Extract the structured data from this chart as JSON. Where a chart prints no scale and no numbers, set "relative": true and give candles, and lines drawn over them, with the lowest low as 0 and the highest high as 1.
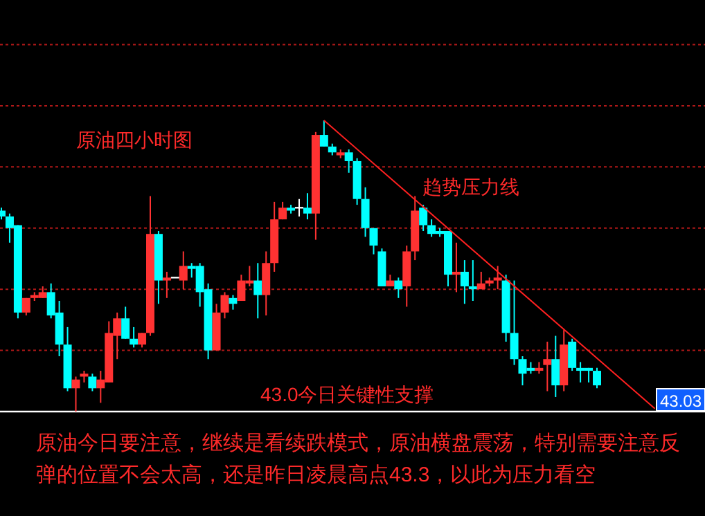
{
  "chart_data": {
    "type": "candlestick",
    "relative": true,
    "title": "原油四小时图",
    "ref_lines": [
      {
        "axis": "y",
        "value": 0.21,
        "color": "#b01818",
        "line_style": "dotted"
      },
      {
        "axis": "y",
        "value": 0.42,
        "color": "#b01818",
        "line_style": "dotted"
      },
      {
        "axis": "y",
        "value": 0.63,
        "color": "#b01818",
        "line_style": "dotted"
      },
      {
        "axis": "y",
        "value": 0.84,
        "color": "#b01818",
        "line_style": "dotted"
      },
      {
        "axis": "y",
        "value": 1.05,
        "color": "#b01818",
        "line_style": "dotted"
      },
      {
        "axis": "y",
        "value": 1.26,
        "color": "#b01818",
        "line_style": "dotted"
      }
    ],
    "annotations": [
      "趋势压力线",
      "43.0今日关键性支撑",
      "43.03",
      "原油今日要注意，继续是看续跌模式，原油横盘震荡，特别需要注意反弹的位置不会太高，还是昨日凌晨高点43.3，以此为压力看空"
    ],
    "categories": [
      null,
      null,
      null,
      null,
      null,
      null,
      null,
      null,
      null,
      null,
      null,
      null,
      null,
      null,
      null,
      null,
      null,
      null,
      null,
      null,
      null,
      null,
      null,
      null,
      null,
      null,
      null,
      null,
      null,
      null,
      null,
      null,
      null,
      null,
      null,
      null,
      null,
      null,
      null,
      null,
      null,
      null,
      null,
      null,
      null,
      null,
      null,
      null,
      null,
      null,
      null,
      null,
      null,
      null,
      null,
      null,
      null,
      null,
      null,
      null,
      null,
      null,
      null,
      null,
      null,
      null,
      null,
      null,
      null,
      null,
      null,
      null,
      null,
      null,
      null,
      null,
      null,
      null,
      null,
      null
    ],
    "ohlc": [
      [
        0.69,
        0.7,
        0.66,
        0.67
      ],
      [
        0.67,
        0.68,
        0.58,
        0.63
      ],
      [
        0.64,
        0.64,
        0.32,
        0.34
      ],
      [
        0.34,
        0.39,
        0.33,
        0.39
      ],
      [
        0.39,
        0.41,
        0.38,
        0.4
      ],
      [
        0.39,
        0.43,
        0.39,
        0.41
      ],
      [
        0.41,
        0.44,
        0.32,
        0.33
      ],
      [
        0.34,
        0.38,
        0.19,
        0.23
      ],
      [
        0.23,
        0.29,
        0.07,
        0.08
      ],
      [
        0.08,
        0.12,
        0.0,
        0.11
      ],
      [
        0.12,
        0.14,
        0.1,
        0.13
      ],
      [
        0.12,
        0.13,
        0.07,
        0.08
      ],
      [
        0.08,
        0.14,
        0.03,
        0.11
      ],
      [
        0.1,
        0.31,
        0.1,
        0.27
      ],
      [
        0.26,
        0.34,
        0.18,
        0.32
      ],
      [
        0.32,
        0.36,
        0.25,
        0.25
      ],
      [
        0.25,
        0.29,
        0.22,
        0.23
      ],
      [
        0.23,
        0.27,
        0.22,
        0.27
      ],
      [
        0.27,
        0.74,
        0.26,
        0.61
      ],
      [
        0.61,
        0.62,
        0.37,
        0.45
      ],
      [
        0.45,
        0.48,
        0.39,
        0.46
      ],
      [
        0.46,
        0.46,
        0.46,
        0.46
      ],
      [
        0.45,
        0.55,
        0.42,
        0.5
      ],
      [
        0.5,
        0.51,
        0.46,
        0.49
      ],
      [
        0.5,
        0.51,
        0.36,
        0.41
      ],
      [
        0.42,
        0.44,
        0.18,
        0.21
      ],
      [
        0.21,
        0.37,
        0.21,
        0.34
      ],
      [
        0.34,
        0.41,
        0.32,
        0.4
      ],
      [
        0.39,
        0.4,
        0.35,
        0.37
      ],
      [
        0.38,
        0.47,
        0.38,
        0.45
      ],
      [
        0.44,
        0.5,
        0.43,
        0.45
      ],
      [
        0.45,
        0.51,
        0.32,
        0.4
      ],
      [
        0.4,
        0.55,
        0.33,
        0.51
      ],
      [
        0.51,
        0.72,
        0.48,
        0.66
      ],
      [
        0.66,
        0.72,
        0.66,
        0.7
      ],
      [
        0.7,
        0.71,
        0.68,
        0.69
      ],
      [
        0.7,
        0.73,
        0.67,
        0.7
      ],
      [
        0.7,
        0.75,
        0.66,
        0.68
      ],
      [
        0.68,
        0.96,
        0.59,
        0.95
      ],
      [
        0.95,
        1.0,
        0.91,
        0.91
      ],
      [
        0.91,
        0.92,
        0.88,
        0.89
      ],
      [
        0.88,
        0.9,
        0.87,
        0.89
      ],
      [
        0.89,
        0.9,
        0.82,
        0.86
      ],
      [
        0.86,
        0.87,
        0.71,
        0.73
      ],
      [
        0.73,
        0.77,
        0.6,
        0.63
      ],
      [
        0.63,
        0.63,
        0.54,
        0.57
      ],
      [
        0.55,
        0.56,
        0.43,
        0.43
      ],
      [
        0.43,
        0.47,
        0.43,
        0.45
      ],
      [
        0.45,
        0.46,
        0.39,
        0.42
      ],
      [
        0.43,
        0.57,
        0.36,
        0.55
      ],
      [
        0.55,
        0.74,
        0.52,
        0.69
      ],
      [
        0.7,
        0.71,
        0.62,
        0.64
      ],
      [
        0.64,
        0.66,
        0.6,
        0.61
      ],
      [
        0.62,
        0.63,
        0.6,
        0.61
      ],
      [
        0.62,
        0.62,
        0.43,
        0.47
      ],
      [
        0.47,
        0.58,
        0.41,
        0.48
      ],
      [
        0.48,
        0.52,
        0.37,
        0.43
      ],
      [
        0.43,
        0.52,
        0.38,
        0.42
      ],
      [
        0.42,
        0.48,
        0.42,
        0.44
      ],
      [
        0.44,
        0.46,
        0.43,
        0.45
      ],
      [
        0.45,
        0.5,
        0.42,
        0.46
      ],
      [
        0.45,
        0.47,
        0.24,
        0.27
      ],
      [
        0.27,
        0.45,
        0.16,
        0.18
      ],
      [
        0.18,
        0.19,
        0.09,
        0.13
      ],
      [
        0.15,
        0.17,
        0.13,
        0.14
      ],
      [
        0.14,
        0.17,
        0.13,
        0.15
      ],
      [
        0.16,
        0.24,
        0.07,
        0.18
      ],
      [
        0.18,
        0.26,
        0.05,
        0.09
      ],
      [
        0.09,
        0.28,
        0.07,
        0.23
      ],
      [
        0.24,
        0.25,
        0.14,
        0.15
      ],
      [
        0.15,
        0.17,
        0.1,
        0.14
      ],
      [
        0.15,
        0.15,
        0.1,
        0.14
      ],
      [
        0.14,
        0.15,
        0.08,
        0.09
      ],
      null,
      null,
      null,
      null,
      null,
      null,
      null
    ],
    "colors": [
      "#00ffff",
      "#00ffff",
      "#00ffff",
      "#ff3232",
      "#ff3232",
      "#ff3232",
      "#00ffff",
      "#00ffff",
      "#00ffff",
      "#ff3232",
      "#ff3232",
      "#00ffff",
      "#ff3232",
      "#ff3232",
      "#ff3232",
      "#00ffff",
      "#00ffff",
      "#ff3232",
      "#ff3232",
      "#00ffff",
      "#ff3232",
      "#ffffff",
      "#ff3232",
      "#00ffff",
      "#00ffff",
      "#00ffff",
      "#ff3232",
      "#ff3232",
      "#00ffff",
      "#ff3232",
      "#ff3232",
      "#00ffff",
      "#ff3232",
      "#ff3232",
      "#ff3232",
      "#00ffff",
      "#ffffff",
      "#00ffff",
      "#ff3232",
      "#00ffff",
      "#00ffff",
      "#ff3232",
      "#00ffff",
      "#00ffff",
      "#00ffff",
      "#00ffff",
      "#00ffff",
      "#ff3232",
      "#00ffff",
      "#ff3232",
      "#ff3232",
      "#00ffff",
      "#00ffff",
      "#00ffff",
      "#00ffff",
      "#ff3232",
      "#00ffff",
      "#00ffff",
      "#ff3232",
      "#ff3232",
      "#ff3232",
      "#00ffff",
      "#00ffff",
      "#00ffff",
      "#00ffff",
      "#ff3232",
      "#ff3232",
      "#00ffff",
      "#ff3232",
      "#00ffff",
      "#00ffff",
      "#00ffff",
      "#00ffff",
      null,
      null,
      null,
      null,
      null,
      null,
      null
    ],
    "series": [
      {
        "type": "line",
        "color": "#ff2020",
        "values": [
          null,
          null,
          null,
          null,
          null,
          null,
          null,
          null,
          null,
          null,
          null,
          null,
          null,
          null,
          null,
          null,
          null,
          null,
          null,
          null,
          null,
          null,
          null,
          null,
          null,
          null,
          null,
          null,
          null,
          null,
          null,
          null,
          null,
          null,
          null,
          null,
          null,
          null,
          null,
          1.0,
          null,
          null,
          null,
          null,
          null,
          null,
          null,
          null,
          null,
          null,
          null,
          null,
          null,
          null,
          null,
          null,
          null,
          null,
          null,
          null,
          null,
          null,
          null,
          null,
          null,
          null,
          null,
          null,
          null,
          null,
          null,
          null,
          null,
          null,
          null,
          null,
          null,
          null,
          null,
          0.01
        ]
      }
    ]
  }
}
